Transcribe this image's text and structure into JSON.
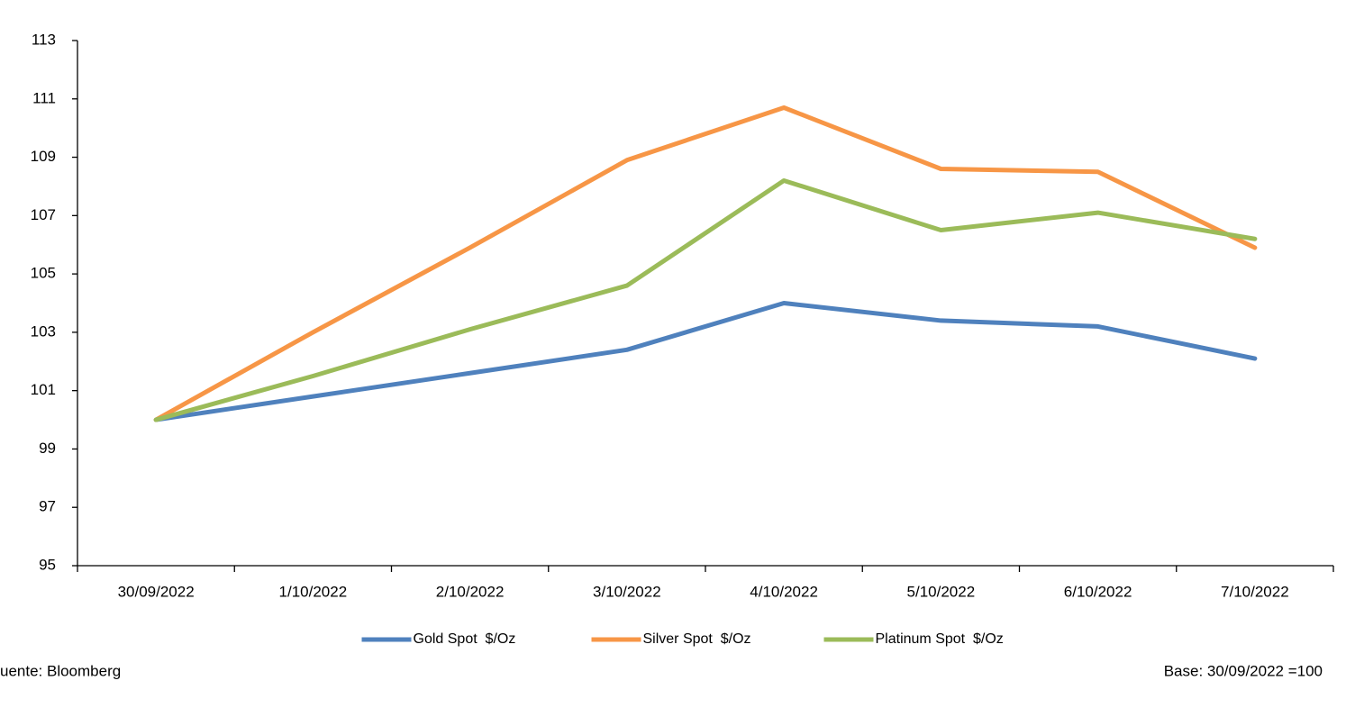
{
  "chart_data": {
    "type": "line",
    "categories": [
      "30/09/2022",
      "1/10/2022",
      "2/10/2022",
      "3/10/2022",
      "4/10/2022",
      "5/10/2022",
      "6/10/2022",
      "7/10/2022"
    ],
    "series": [
      {
        "name": "Gold Spot  $/Oz",
        "color": "#4f81bd",
        "values": [
          100,
          100.8,
          101.6,
          102.4,
          104.0,
          103.4,
          103.2,
          102.1
        ]
      },
      {
        "name": "Silver Spot  $/Oz",
        "color": "#f79646",
        "values": [
          100,
          103.0,
          105.9,
          108.9,
          110.7,
          108.6,
          108.5,
          105.9
        ]
      },
      {
        "name": "Platinum Spot  $/Oz",
        "color": "#9bbb59",
        "values": [
          100,
          101.5,
          103.1,
          104.6,
          108.2,
          106.5,
          107.1,
          106.2
        ]
      }
    ],
    "ylim": [
      95,
      113
    ],
    "yticks": [
      95,
      97,
      99,
      101,
      103,
      105,
      107,
      109,
      111,
      113
    ],
    "grid": false,
    "legend": "bottom",
    "source": "uente: Bloomberg",
    "note": "Base: 30/09/2022 =100"
  }
}
